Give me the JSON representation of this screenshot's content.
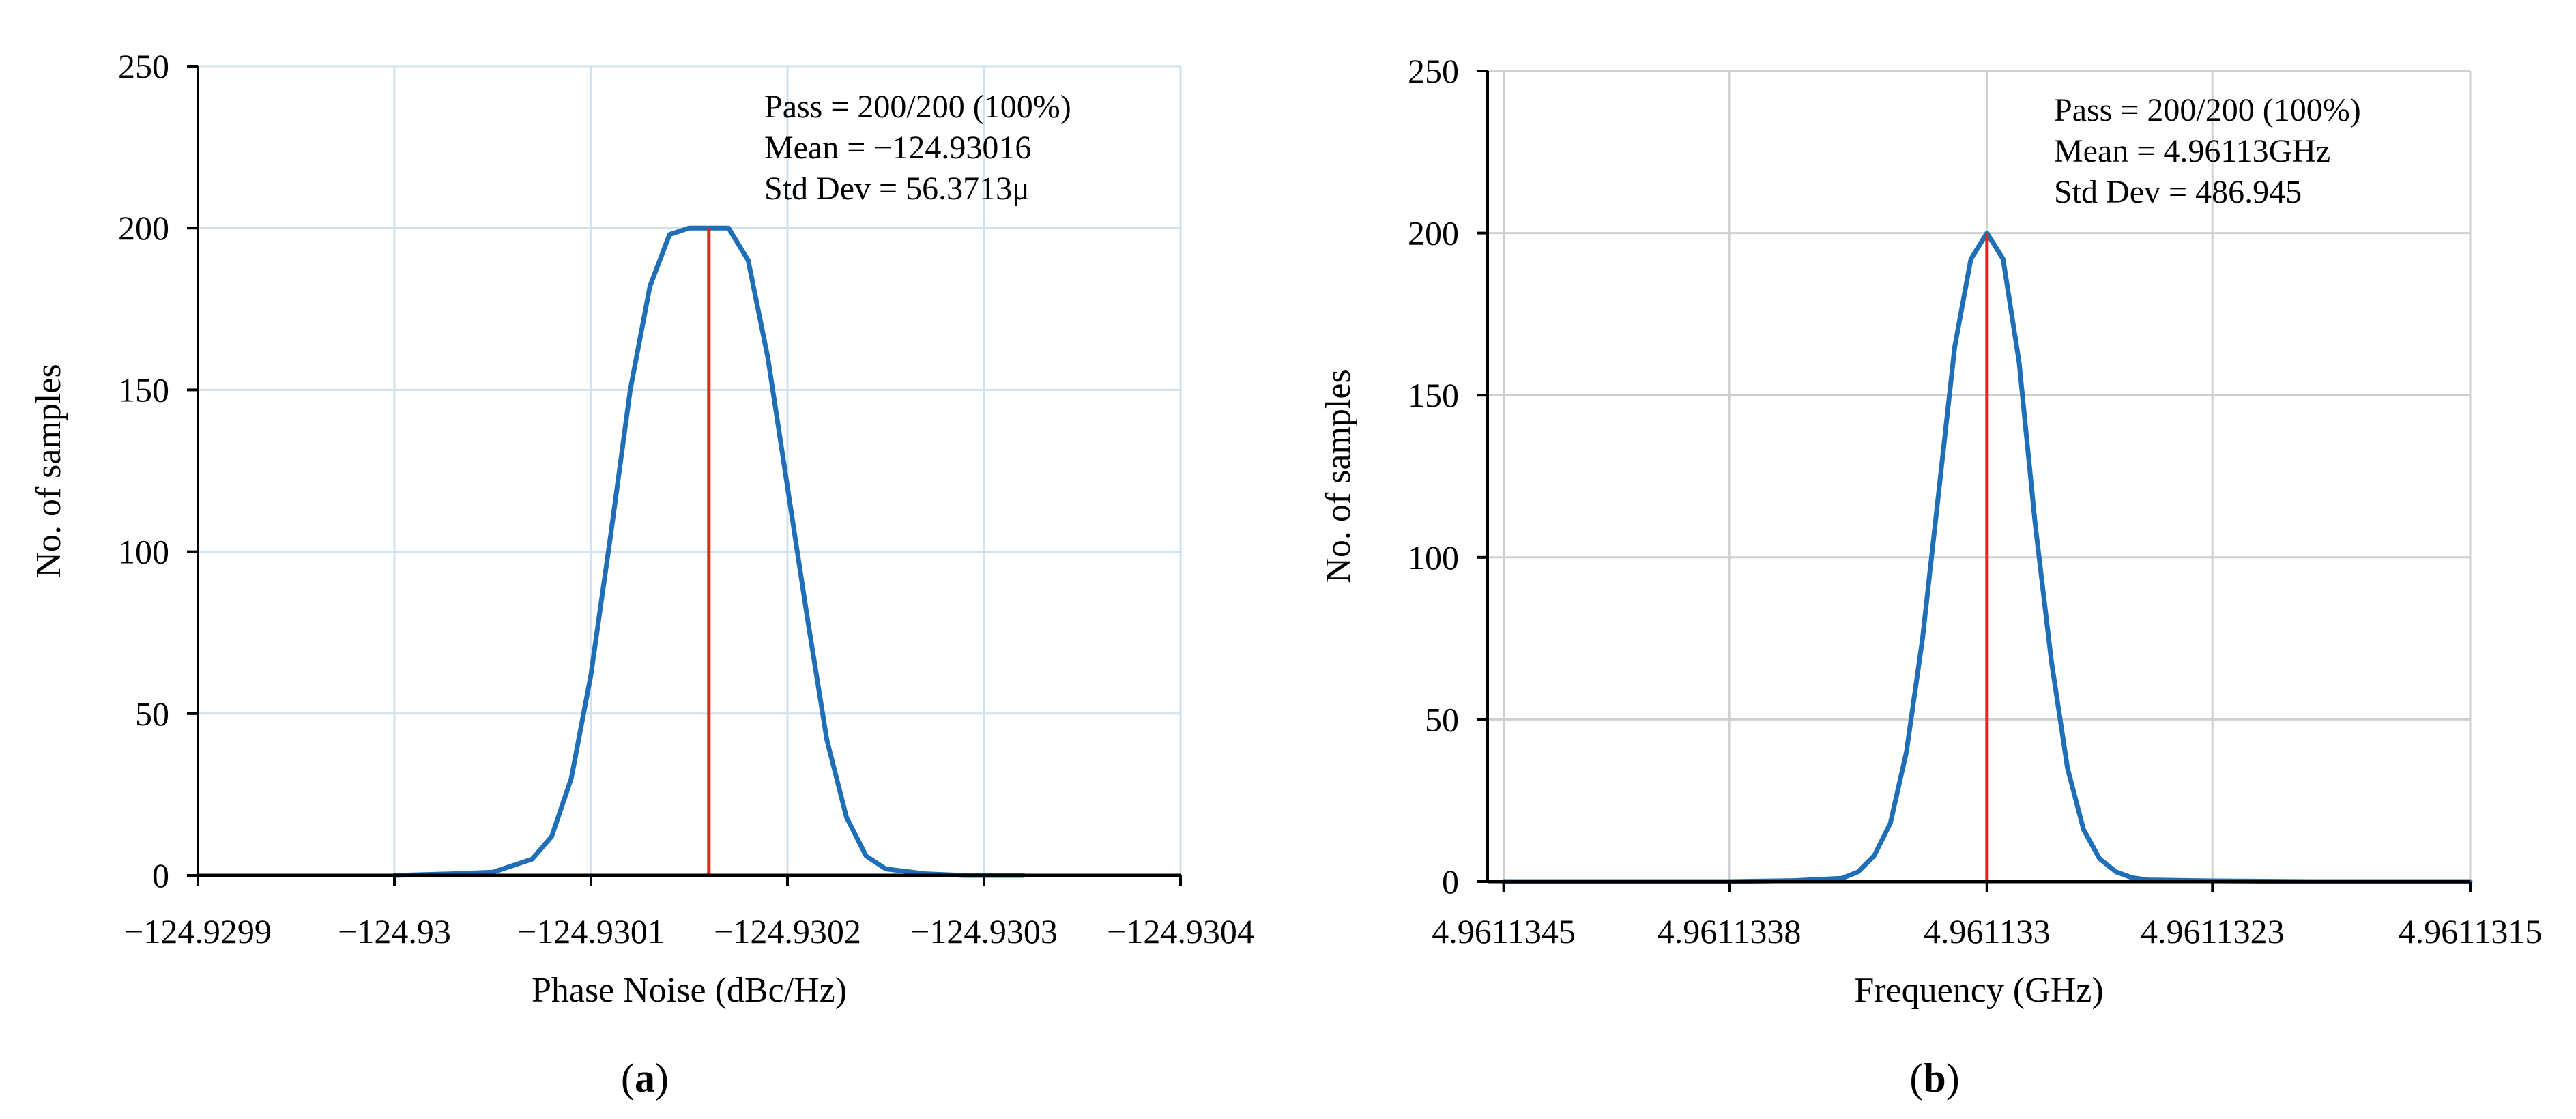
{
  "chart_data": [
    {
      "panel_label": "(a)",
      "panel_letter": "a",
      "type": "line",
      "xlabel": "Phase Noise (dBc/Hz)",
      "ylabel": "No. of samples",
      "ylim": [
        0,
        250
      ],
      "yticks": [
        0,
        50,
        100,
        150,
        200,
        250
      ],
      "xlim": [
        -124.9299,
        -124.9304
      ],
      "xticks": [
        -124.9299,
        -124.93,
        -124.9301,
        -124.9302,
        -124.9303,
        -124.9304
      ],
      "xtick_labels": [
        "−124.9299",
        "−124.93",
        "−124.9301",
        "−124.9302",
        "−124.9303",
        "−124.9304"
      ],
      "grid": true,
      "stats": [
        "Pass = 200/200 (100%)",
        "Mean = −124.93016",
        "Std Dev = 56.3713μ"
      ],
      "mean_marker": -124.93016,
      "series": [
        {
          "color": "#1f6fb8",
          "x": [
            -124.93,
            -124.93003,
            -124.93005,
            -124.93007,
            -124.93008,
            -124.93009,
            -124.9301,
            -124.93011,
            -124.93012,
            -124.93013,
            -124.93014,
            -124.93015,
            -124.93016,
            -124.93017,
            -124.93018,
            -124.93019,
            -124.9302,
            -124.93021,
            -124.93022,
            -124.93023,
            -124.93024,
            -124.93025,
            -124.93027,
            -124.93029,
            -124.93032
          ],
          "y": [
            0,
            0.5,
            1,
            5,
            12,
            30,
            62,
            105,
            150,
            182,
            198,
            200,
            200,
            200,
            190,
            160,
            120,
            80,
            42,
            18,
            6,
            2,
            0.5,
            0,
            0
          ]
        }
      ],
      "colors": {
        "curve": "#1f6fb8",
        "mean_line": "#e8241c",
        "grid": "#d0e1f0",
        "axis": "#000000"
      }
    },
    {
      "panel_label": "(b)",
      "panel_letter": "b",
      "type": "line",
      "xlabel": "Frequency (GHz)",
      "ylabel": "No. of samples",
      "ylim": [
        0,
        250
      ],
      "yticks": [
        0,
        50,
        100,
        150,
        200,
        250
      ],
      "xlim": [
        4.96113455,
        4.9611315
      ],
      "xticks": [
        4.9611345,
        4.9611338,
        4.961133,
        4.9611323,
        4.9611315
      ],
      "xtick_labels": [
        "4.9611345",
        "4.9611338",
        "4.961133",
        "4.9611323",
        "4.9611315"
      ],
      "grid": true,
      "stats": [
        "Pass = 200/200 (100%)",
        "Mean = 4.96113GHz",
        "Std Dev = 486.945"
      ],
      "mean_marker": 4.961133,
      "series": [
        {
          "color": "#1f6fb8",
          "x": [
            4.9611345,
            4.9611338,
            4.9611336,
            4.96113345,
            4.9611334,
            4.96113335,
            4.9611333,
            4.96113325,
            4.9611332,
            4.96113315,
            4.9611331,
            4.96113305,
            4.961133,
            4.96113295,
            4.9611329,
            4.96113285,
            4.9611328,
            4.96113275,
            4.9611327,
            4.96113265,
            4.9611326,
            4.96113255,
            4.9611325,
            4.9611323,
            4.961132,
            4.9611315
          ],
          "y": [
            0,
            0,
            0.3,
            1,
            3,
            8,
            18,
            40,
            75,
            120,
            165,
            192,
            200,
            192,
            160,
            110,
            68,
            35,
            16,
            7,
            3,
            1.2,
            0.5,
            0.2,
            0,
            0
          ]
        }
      ],
      "colors": {
        "curve": "#1f6fb8",
        "mean_line": "#e8241c",
        "grid": "#d0d0d0",
        "axis": "#000000"
      }
    }
  ]
}
